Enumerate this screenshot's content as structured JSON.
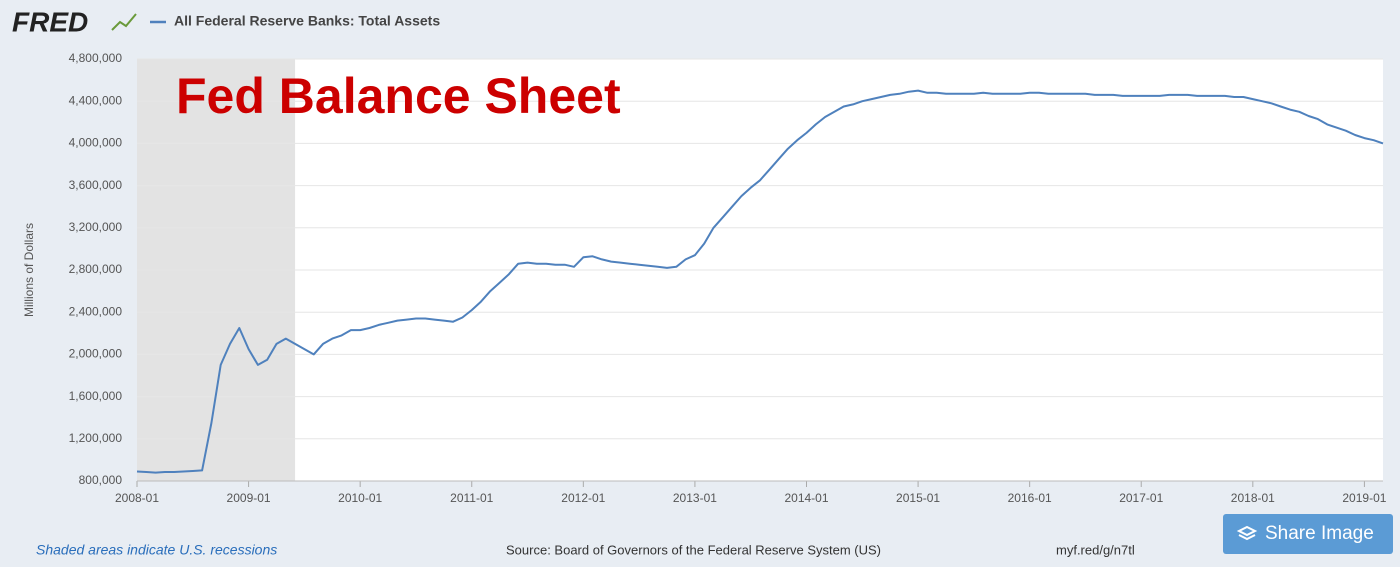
{
  "logo": "FRED",
  "chart_data": {
    "type": "line",
    "title": "Fed Balance Sheet",
    "y_label": "Millions of Dollars",
    "x": [
      "2008-01",
      "2008-02",
      "2008-03",
      "2008-04",
      "2008-05",
      "2008-06",
      "2008-07",
      "2008-08",
      "2008-09",
      "2008-10",
      "2008-11",
      "2008-12",
      "2009-01",
      "2009-02",
      "2009-03",
      "2009-04",
      "2009-05",
      "2009-06",
      "2009-07",
      "2009-08",
      "2009-09",
      "2009-10",
      "2009-11",
      "2009-12",
      "2010-01",
      "2010-02",
      "2010-03",
      "2010-04",
      "2010-05",
      "2010-06",
      "2010-07",
      "2010-08",
      "2010-09",
      "2010-10",
      "2010-11",
      "2010-12",
      "2011-01",
      "2011-02",
      "2011-03",
      "2011-04",
      "2011-05",
      "2011-06",
      "2011-07",
      "2011-08",
      "2011-09",
      "2011-10",
      "2011-11",
      "2011-12",
      "2012-01",
      "2012-02",
      "2012-03",
      "2012-04",
      "2012-05",
      "2012-06",
      "2012-07",
      "2012-08",
      "2012-09",
      "2012-10",
      "2012-11",
      "2012-12",
      "2013-01",
      "2013-02",
      "2013-03",
      "2013-04",
      "2013-05",
      "2013-06",
      "2013-07",
      "2013-08",
      "2013-09",
      "2013-10",
      "2013-11",
      "2013-12",
      "2014-01",
      "2014-02",
      "2014-03",
      "2014-04",
      "2014-05",
      "2014-06",
      "2014-07",
      "2014-08",
      "2014-09",
      "2014-10",
      "2014-11",
      "2014-12",
      "2015-01",
      "2015-02",
      "2015-03",
      "2015-04",
      "2015-05",
      "2015-06",
      "2015-07",
      "2015-08",
      "2015-09",
      "2015-10",
      "2015-11",
      "2015-12",
      "2016-01",
      "2016-02",
      "2016-03",
      "2016-04",
      "2016-05",
      "2016-06",
      "2016-07",
      "2016-08",
      "2016-09",
      "2016-10",
      "2016-11",
      "2016-12",
      "2017-01",
      "2017-02",
      "2017-03",
      "2017-04",
      "2017-05",
      "2017-06",
      "2017-07",
      "2017-08",
      "2017-09",
      "2017-10",
      "2017-11",
      "2017-12",
      "2018-01",
      "2018-02",
      "2018-03",
      "2018-04",
      "2018-05",
      "2018-06",
      "2018-07",
      "2018-08",
      "2018-09",
      "2018-10",
      "2018-11",
      "2018-12",
      "2019-01",
      "2019-02",
      "2019-03"
    ],
    "series": [
      {
        "name": "All Federal Reserve Banks: Total Assets",
        "color": "#4f81bd",
        "values": [
          890000,
          885000,
          880000,
          885000,
          885000,
          890000,
          895000,
          900000,
          1350000,
          1900000,
          2100000,
          2250000,
          2050000,
          1900000,
          1950000,
          2100000,
          2150000,
          2100000,
          2050000,
          2000000,
          2100000,
          2150000,
          2180000,
          2230000,
          2230000,
          2250000,
          2280000,
          2300000,
          2320000,
          2330000,
          2340000,
          2340000,
          2330000,
          2320000,
          2310000,
          2350000,
          2420000,
          2500000,
          2600000,
          2680000,
          2760000,
          2860000,
          2870000,
          2860000,
          2860000,
          2850000,
          2850000,
          2830000,
          2920000,
          2930000,
          2900000,
          2880000,
          2870000,
          2860000,
          2850000,
          2840000,
          2830000,
          2820000,
          2830000,
          2900000,
          2940000,
          3050000,
          3200000,
          3300000,
          3400000,
          3500000,
          3580000,
          3650000,
          3750000,
          3850000,
          3950000,
          4030000,
          4100000,
          4180000,
          4250000,
          4300000,
          4350000,
          4370000,
          4400000,
          4420000,
          4440000,
          4460000,
          4470000,
          4490000,
          4500000,
          4480000,
          4480000,
          4470000,
          4470000,
          4470000,
          4470000,
          4480000,
          4470000,
          4470000,
          4470000,
          4470000,
          4480000,
          4480000,
          4470000,
          4470000,
          4470000,
          4470000,
          4470000,
          4460000,
          4460000,
          4460000,
          4450000,
          4450000,
          4450000,
          4450000,
          4450000,
          4460000,
          4460000,
          4460000,
          4450000,
          4450000,
          4450000,
          4450000,
          4440000,
          4440000,
          4420000,
          4400000,
          4380000,
          4350000,
          4320000,
          4300000,
          4260000,
          4230000,
          4180000,
          4150000,
          4120000,
          4080000,
          4050000,
          4030000,
          4000000
        ]
      }
    ],
    "xlim": [
      "2008-01",
      "2019-03"
    ],
    "xticks": [
      "2008-01",
      "2009-01",
      "2010-01",
      "2011-01",
      "2012-01",
      "2013-01",
      "2014-01",
      "2015-01",
      "2016-01",
      "2017-01",
      "2018-01",
      "2019-01"
    ],
    "ylim": [
      800000,
      4800000
    ],
    "yticks": [
      {
        "value": 800000,
        "label": "800,000"
      },
      {
        "value": 1200000,
        "label": "1,200,000"
      },
      {
        "value": 1600000,
        "label": "1,600,000"
      },
      {
        "value": 2000000,
        "label": "2,000,000"
      },
      {
        "value": 2400000,
        "label": "2,400,000"
      },
      {
        "value": 2800000,
        "label": "2,800,000"
      },
      {
        "value": 3200000,
        "label": "3,200,000"
      },
      {
        "value": 3600000,
        "label": "3,600,000"
      },
      {
        "value": 4000000,
        "label": "4,000,000"
      },
      {
        "value": 4400000,
        "label": "4,400,000"
      },
      {
        "value": 4800000,
        "label": "4,800,000"
      }
    ],
    "grid": true,
    "recessions": [
      {
        "start": "2008-01",
        "end": "2009-06"
      }
    ],
    "recession_color": "#e3e3e3"
  },
  "footer": {
    "recession_note": "Shaded areas indicate U.S. recessions",
    "source": "Source: Board of Governors of the Federal Reserve System (US)",
    "link": "myf.red/g/n7tl"
  },
  "share_button": "Share Image"
}
